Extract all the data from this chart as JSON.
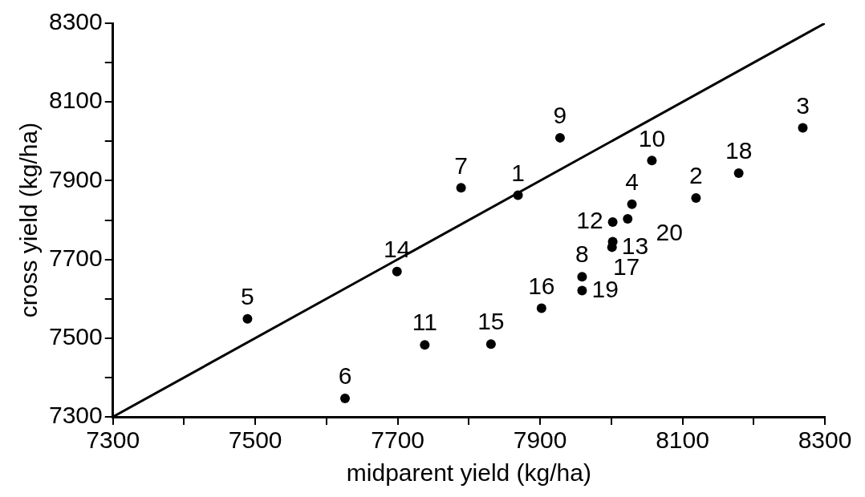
{
  "chart_data": {
    "type": "scatter",
    "xlabel": "midparent yield (kg/ha)",
    "ylabel": "cross yield (kg/ha)",
    "xlim": [
      7300,
      8300
    ],
    "ylim": [
      7300,
      8300
    ],
    "xticks": [
      7300,
      {
        "value": 7400,
        "label": null
      },
      7500,
      {
        "value": 7600,
        "label": null
      },
      7700,
      {
        "value": 7800,
        "label": null
      },
      7900,
      {
        "value": 8000,
        "label": null
      },
      8100,
      {
        "value": 8200,
        "label": null
      },
      8300
    ],
    "yticks": [
      7300,
      {
        "value": 7400,
        "label": null
      },
      7500,
      {
        "value": 7600,
        "label": null
      },
      7700,
      {
        "value": 7800,
        "label": null
      },
      7900,
      {
        "value": 8000,
        "label": null
      },
      8100,
      {
        "value": 8200,
        "label": null
      },
      8300
    ],
    "grid": false,
    "legend": false,
    "series": [
      {
        "color": "#000000",
        "marker": "circle",
        "x": [
          7869,
          8119,
          8269,
          8029,
          7489,
          7626,
          7789,
          7959,
          7928,
          8057,
          7738,
          8002,
          8001,
          7699,
          7831,
          7902,
          8002,
          8179,
          7959,
          8023
        ],
        "values": [
          7863,
          7856,
          8034,
          7840,
          7549,
          7347,
          7882,
          7656,
          8009,
          7951,
          7483,
          7795,
          7731,
          7669,
          7485,
          7576,
          7745,
          7919,
          7621,
          7803
        ]
      },
      {
        "type": "line",
        "color": "#000000",
        "marker": "none",
        "line_style": "solid",
        "x": [
          7300,
          8300
        ],
        "values": [
          7300,
          8300
        ]
      }
    ],
    "annotations": [
      {
        "text": "1",
        "x": 7869,
        "y": 7863
      },
      {
        "text": "2",
        "x": 8119,
        "y": 7856
      },
      {
        "text": "3",
        "x": 8269,
        "y": 8034
      },
      {
        "text": "4",
        "x": 8029,
        "y": 7840
      },
      {
        "text": "5",
        "x": 7489,
        "y": 7549
      },
      {
        "text": "6",
        "x": 7626,
        "y": 7347
      },
      {
        "text": "7",
        "x": 7789,
        "y": 7882
      },
      {
        "text": "8",
        "x": 7959,
        "y": 7656
      },
      {
        "text": "9",
        "x": 7928,
        "y": 8009
      },
      {
        "text": "10",
        "x": 8057,
        "y": 7951
      },
      {
        "text": "11",
        "x": 7738,
        "y": 7483
      },
      {
        "text": "12",
        "x": 8002,
        "y": 7795
      },
      {
        "text": "13",
        "x": 8001,
        "y": 7731
      },
      {
        "text": "14",
        "x": 7699,
        "y": 7669
      },
      {
        "text": "15",
        "x": 7831,
        "y": 7485
      },
      {
        "text": "16",
        "x": 7902,
        "y": 7576
      },
      {
        "text": "17",
        "x": 8002,
        "y": 7745
      },
      {
        "text": "18",
        "x": 8179,
        "y": 7919
      },
      {
        "text": "19",
        "x": 7959,
        "y": 7621
      },
      {
        "text": "20",
        "x": 8023,
        "y": 7803
      }
    ]
  }
}
